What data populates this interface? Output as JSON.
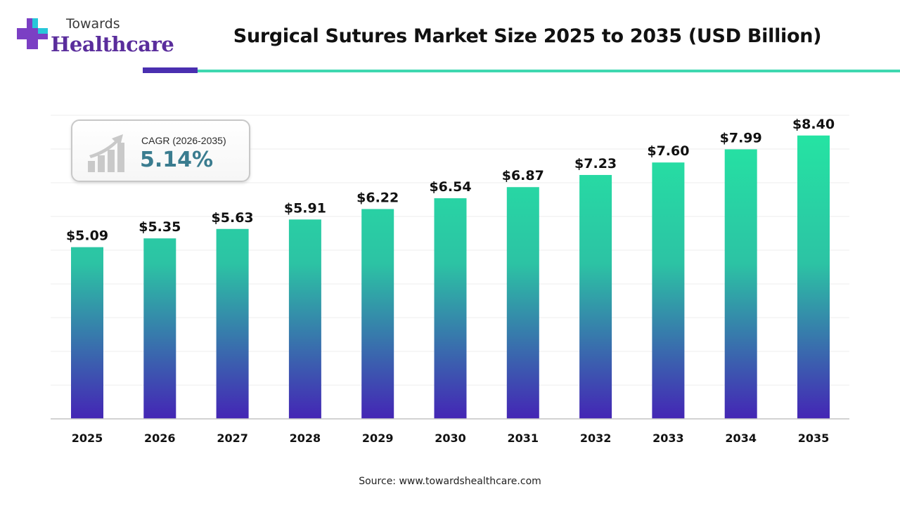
{
  "brand": {
    "name_small": "Towards",
    "name_big": "Healthcare"
  },
  "colors": {
    "bar_top": "#25e3a3",
    "bar_bottom": "#4425b5",
    "brand_purple": "#5a2d9c",
    "accent_teal": "#3fd8b0",
    "cagr_value": "#3a7c8f"
  },
  "cagr": {
    "label": "CAGR (2026-2035)",
    "value": "5.14%"
  },
  "source": "Source: www.towardshealthcare.com",
  "chart_data": {
    "type": "bar",
    "title": "Surgical Sutures Market Size 2025 to 2035 (USD Billion)",
    "categories": [
      "2025",
      "2026",
      "2027",
      "2028",
      "2029",
      "2030",
      "2031",
      "2032",
      "2033",
      "2034",
      "2035"
    ],
    "values": [
      5.09,
      5.35,
      5.63,
      5.91,
      6.22,
      6.54,
      6.87,
      7.23,
      7.6,
      7.99,
      8.4
    ],
    "value_labels": [
      "$5.09",
      "$5.35",
      "$5.63",
      "$5.91",
      "$6.22",
      "$6.54",
      "$6.87",
      "$7.23",
      "$7.60",
      "$7.99",
      "$8.40"
    ],
    "xlabel": "",
    "ylabel": "",
    "ylim": [
      0,
      9
    ],
    "grid": true,
    "legend": "none"
  }
}
